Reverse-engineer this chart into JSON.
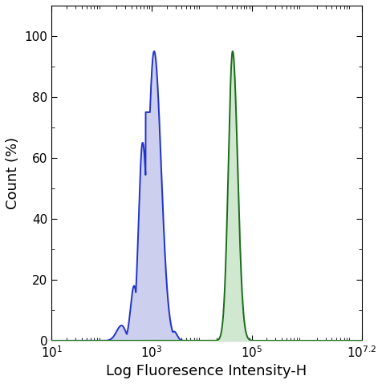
{
  "xlabel": "Log Fluoresence Intensity-H",
  "ylabel": "Count (%)",
  "xlim_log": [
    1,
    7.2
  ],
  "ylim": [
    0,
    110
  ],
  "yticks": [
    0,
    20,
    40,
    60,
    80,
    100
  ],
  "blue_color": "#2233cc",
  "blue_fill": "#ccd0ee",
  "green_color": "#1a6e1a",
  "green_fill": "#d0e8d0",
  "background_color": "#ffffff"
}
